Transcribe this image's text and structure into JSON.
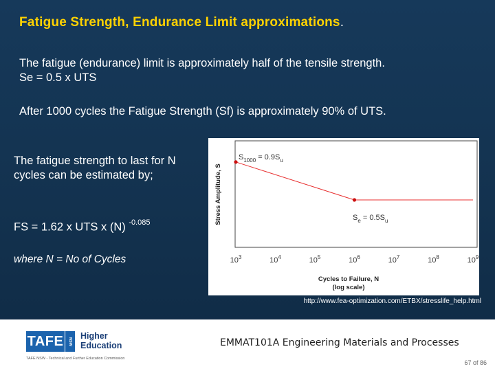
{
  "slide": {
    "title": "Fatigue Strength, Endurance Limit approximations",
    "title_end": ".",
    "para1_line1": "The fatigue (endurance) limit is approximately half of the tensile strength.",
    "para1_line2": "Se = 0.5 x UTS",
    "para2": "After 1000 cycles the Fatigue Strength (Sf) is approximately 90% of UTS.",
    "para3": "The fatigue strength to last for N cycles can be estimated by;",
    "formula_base": "FS =  1.62 x UTS x (N)",
    "formula_exp": "-0.085",
    "where": "where N = No of Cycles",
    "source": "http://www.fea-optimization.com/ETBX/stresslife_help.html"
  },
  "figure": {
    "ylabel": "Stress Amplitude, S",
    "xlabel_line1": "Cycles to Failure, N",
    "xlabel_line2": "(log scale)",
    "ann_top_S": "S",
    "ann_top_sub": "1000",
    "ann_top_rest": " = 0.9S",
    "ann_top_u": "u",
    "ann_bot_S": "S",
    "ann_bot_sub": "e",
    "ann_bot_rest": " = 0.5S",
    "ann_bot_u": "u",
    "ticks": [
      {
        "base": "10",
        "exp": "3"
      },
      {
        "base": "10",
        "exp": "4"
      },
      {
        "base": "10",
        "exp": "5"
      },
      {
        "base": "10",
        "exp": "6"
      },
      {
        "base": "10",
        "exp": "7"
      },
      {
        "base": "10",
        "exp": "8"
      },
      {
        "base": "10",
        "exp": "9"
      }
    ],
    "colors": {
      "curve": "#e83030",
      "point": "#cc1010"
    }
  },
  "chart_data": {
    "type": "line",
    "xscale": "log",
    "xlabel": "Cycles to Failure, N (log scale)",
    "ylabel": "Stress Amplitude, S",
    "x_ticks": [
      "10^3",
      "10^4",
      "10^5",
      "10^6",
      "10^7",
      "10^8",
      "10^9"
    ],
    "series": [
      {
        "x": [
          1000,
          1000000,
          1000000000
        ],
        "y": [
          0.9,
          0.5,
          0.5
        ]
      }
    ],
    "points": [
      {
        "x": 1000,
        "y": 0.9
      },
      {
        "x": 1000000,
        "y": 0.5
      }
    ],
    "annotations": [
      "S1000 = 0.9Su",
      "Se = 0.5Su"
    ]
  },
  "footer": {
    "logo_tafe": "TAFE",
    "logo_nsw": "NSW",
    "logo_he1": "Higher",
    "logo_he2": "Education",
    "commission": "TAFE NSW - Technical and Further Education Commission",
    "course": "EMMAT101A Engineering Materials and Processes",
    "page": "67 of 86"
  }
}
